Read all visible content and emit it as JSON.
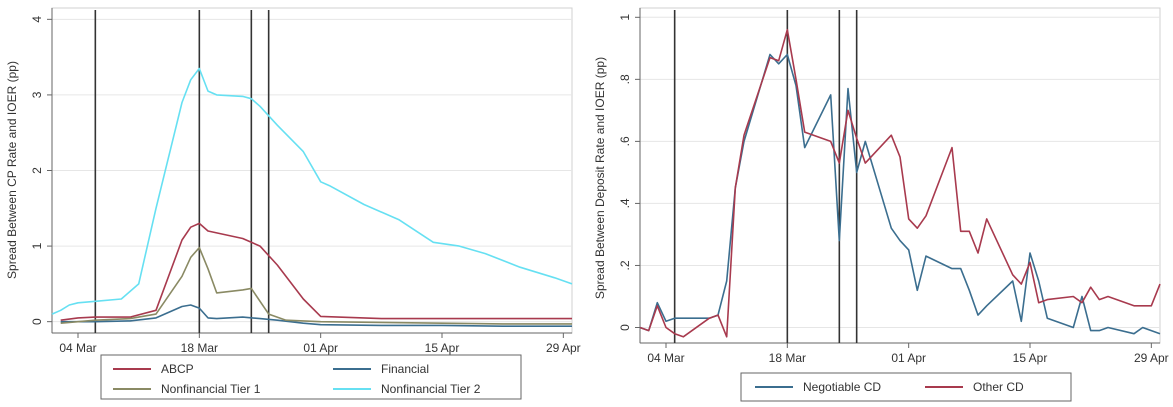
{
  "chart_data": [
    {
      "type": "line",
      "title": "",
      "ylabel": "Spread Between CP Rate and IOER (pp)",
      "xlabel": "",
      "x_domain": [
        "2020-03-01",
        "2020-04-30"
      ],
      "x_ticks": [
        {
          "date": "2020-03-04",
          "label": "04 Mar"
        },
        {
          "date": "2020-03-18",
          "label": "18 Mar"
        },
        {
          "date": "2020-04-01",
          "label": "01 Apr"
        },
        {
          "date": "2020-04-15",
          "label": "15 Apr"
        },
        {
          "date": "2020-04-29",
          "label": "29 Apr"
        }
      ],
      "ylim": [
        -0.15,
        4.15
      ],
      "y_ticks": [
        0,
        1,
        2,
        3,
        4
      ],
      "y_tick_labels": [
        "0",
        "1",
        "2",
        "3",
        "4"
      ],
      "grid": true,
      "event_lines": [
        "2020-03-06",
        "2020-03-18",
        "2020-03-24",
        "2020-03-26"
      ],
      "legend": {
        "placement": "bottom",
        "columns": 2
      },
      "series": [
        {
          "name": "ABCP",
          "color": "#a83a4e",
          "x": [
            "2020-03-02",
            "2020-03-04",
            "2020-03-06",
            "2020-03-10",
            "2020-03-13",
            "2020-03-16",
            "2020-03-17",
            "2020-03-18",
            "2020-03-19",
            "2020-03-23",
            "2020-03-25",
            "2020-03-27",
            "2020-03-30",
            "2020-04-01",
            "2020-04-08",
            "2020-04-15",
            "2020-04-22",
            "2020-04-30"
          ],
          "values": [
            0.02,
            0.05,
            0.06,
            0.06,
            0.15,
            1.08,
            1.25,
            1.3,
            1.2,
            1.1,
            1.0,
            0.75,
            0.3,
            0.07,
            0.04,
            0.04,
            0.04,
            0.04
          ]
        },
        {
          "name": "Financial",
          "color": "#3b6e8f",
          "x": [
            "2020-03-02",
            "2020-03-06",
            "2020-03-10",
            "2020-03-13",
            "2020-03-16",
            "2020-03-17",
            "2020-03-18",
            "2020-03-19",
            "2020-03-20",
            "2020-03-23",
            "2020-03-25",
            "2020-03-27",
            "2020-03-30",
            "2020-04-01",
            "2020-04-08",
            "2020-04-15",
            "2020-04-22",
            "2020-04-30"
          ],
          "values": [
            0.0,
            0.0,
            0.01,
            0.05,
            0.2,
            0.22,
            0.18,
            0.05,
            0.04,
            0.06,
            0.04,
            0.02,
            -0.02,
            -0.04,
            -0.05,
            -0.05,
            -0.06,
            -0.06
          ]
        },
        {
          "name": "Nonfinancial Tier 1",
          "color": "#8a8a64",
          "x": [
            "2020-03-02",
            "2020-03-06",
            "2020-03-10",
            "2020-03-13",
            "2020-03-16",
            "2020-03-17",
            "2020-03-18",
            "2020-03-19",
            "2020-03-20",
            "2020-03-23",
            "2020-03-24",
            "2020-03-26",
            "2020-03-28",
            "2020-04-01",
            "2020-04-08",
            "2020-04-15",
            "2020-04-22",
            "2020-04-30"
          ],
          "values": [
            -0.02,
            0.02,
            0.04,
            0.1,
            0.6,
            0.85,
            0.98,
            0.7,
            0.38,
            0.42,
            0.44,
            0.1,
            0.02,
            0.0,
            -0.01,
            -0.02,
            -0.03,
            -0.03
          ]
        },
        {
          "name": "Nonfinancial Tier 2",
          "color": "#66e0f2",
          "x": [
            "2020-03-01",
            "2020-03-02",
            "2020-03-03",
            "2020-03-04",
            "2020-03-06",
            "2020-03-09",
            "2020-03-11",
            "2020-03-13",
            "2020-03-16",
            "2020-03-17",
            "2020-03-18",
            "2020-03-19",
            "2020-03-20",
            "2020-03-23",
            "2020-03-24",
            "2020-03-25",
            "2020-03-27",
            "2020-03-30",
            "2020-04-01",
            "2020-04-02",
            "2020-04-06",
            "2020-04-10",
            "2020-04-14",
            "2020-04-17",
            "2020-04-20",
            "2020-04-24",
            "2020-04-28",
            "2020-04-30"
          ],
          "values": [
            0.1,
            0.15,
            0.22,
            0.25,
            0.27,
            0.3,
            0.5,
            1.5,
            2.9,
            3.2,
            3.35,
            3.05,
            3.0,
            2.98,
            2.95,
            2.85,
            2.6,
            2.25,
            1.85,
            1.8,
            1.55,
            1.35,
            1.05,
            1.0,
            0.9,
            0.72,
            0.58,
            0.5
          ]
        }
      ]
    },
    {
      "type": "line",
      "title": "",
      "ylabel": "Spread Between Deposit Rate and IOER (pp)",
      "xlabel": "",
      "x_domain": [
        "2020-03-01",
        "2020-04-30"
      ],
      "x_ticks": [
        {
          "date": "2020-03-04",
          "label": "04 Mar"
        },
        {
          "date": "2020-03-18",
          "label": "18 Mar"
        },
        {
          "date": "2020-04-01",
          "label": "01 Apr"
        },
        {
          "date": "2020-04-15",
          "label": "15 Apr"
        },
        {
          "date": "2020-04-29",
          "label": "29 Apr"
        }
      ],
      "ylim": [
        -0.05,
        1.03
      ],
      "y_ticks": [
        0,
        0.2,
        0.4,
        0.6,
        0.8,
        1
      ],
      "y_tick_labels": [
        "0",
        ".2",
        ".4",
        ".6",
        ".8",
        "1"
      ],
      "grid": true,
      "event_lines": [
        "2020-03-05",
        "2020-03-18",
        "2020-03-24",
        "2020-03-26"
      ],
      "legend": {
        "placement": "bottom",
        "columns": 2
      },
      "series": [
        {
          "name": "Negotiable CD",
          "color": "#3b6e8f",
          "x": [
            "2020-03-01",
            "2020-03-02",
            "2020-03-03",
            "2020-03-04",
            "2020-03-05",
            "2020-03-06",
            "2020-03-09",
            "2020-03-10",
            "2020-03-11",
            "2020-03-12",
            "2020-03-13",
            "2020-03-16",
            "2020-03-17",
            "2020-03-18",
            "2020-03-19",
            "2020-03-20",
            "2020-03-23",
            "2020-03-24",
            "2020-03-25",
            "2020-03-26",
            "2020-03-27",
            "2020-03-30",
            "2020-03-31",
            "2020-04-01",
            "2020-04-02",
            "2020-04-03",
            "2020-04-06",
            "2020-04-07",
            "2020-04-08",
            "2020-04-09",
            "2020-04-10",
            "2020-04-13",
            "2020-04-14",
            "2020-04-15",
            "2020-04-16",
            "2020-04-17",
            "2020-04-20",
            "2020-04-21",
            "2020-04-22",
            "2020-04-23",
            "2020-04-24",
            "2020-04-27",
            "2020-04-28",
            "2020-04-29",
            "2020-04-30"
          ],
          "values": [
            0.0,
            -0.01,
            0.08,
            0.02,
            0.03,
            0.03,
            0.03,
            0.04,
            0.15,
            0.45,
            0.6,
            0.88,
            0.85,
            0.88,
            0.78,
            0.58,
            0.75,
            0.28,
            0.77,
            0.5,
            0.6,
            0.32,
            0.28,
            0.25,
            0.12,
            0.23,
            0.19,
            0.19,
            0.12,
            0.04,
            0.07,
            0.15,
            0.02,
            0.24,
            0.15,
            0.03,
            0.0,
            0.1,
            -0.01,
            -0.01,
            0.0,
            -0.02,
            0.0,
            -0.01,
            -0.02
          ]
        },
        {
          "name": "Other CD",
          "color": "#a83a4e",
          "x": [
            "2020-03-01",
            "2020-03-02",
            "2020-03-03",
            "2020-03-04",
            "2020-03-05",
            "2020-03-06",
            "2020-03-09",
            "2020-03-10",
            "2020-03-11",
            "2020-03-12",
            "2020-03-13",
            "2020-03-16",
            "2020-03-17",
            "2020-03-18",
            "2020-03-19",
            "2020-03-20",
            "2020-03-23",
            "2020-03-24",
            "2020-03-25",
            "2020-03-26",
            "2020-03-27",
            "2020-03-30",
            "2020-03-31",
            "2020-04-01",
            "2020-04-02",
            "2020-04-03",
            "2020-04-06",
            "2020-04-07",
            "2020-04-08",
            "2020-04-09",
            "2020-04-10",
            "2020-04-13",
            "2020-04-14",
            "2020-04-15",
            "2020-04-16",
            "2020-04-17",
            "2020-04-20",
            "2020-04-21",
            "2020-04-22",
            "2020-04-23",
            "2020-04-24",
            "2020-04-27",
            "2020-04-28",
            "2020-04-29",
            "2020-04-30"
          ],
          "values": [
            0.0,
            -0.01,
            0.07,
            0.0,
            -0.02,
            -0.03,
            0.03,
            0.04,
            -0.03,
            0.45,
            0.62,
            0.87,
            0.86,
            0.96,
            0.8,
            0.63,
            0.6,
            0.53,
            0.7,
            0.61,
            0.53,
            0.62,
            0.55,
            0.35,
            0.32,
            0.36,
            0.58,
            0.31,
            0.31,
            0.24,
            0.35,
            0.17,
            0.14,
            0.21,
            0.08,
            0.09,
            0.1,
            0.08,
            0.13,
            0.09,
            0.1,
            0.07,
            0.07,
            0.07,
            0.14
          ]
        }
      ]
    }
  ]
}
